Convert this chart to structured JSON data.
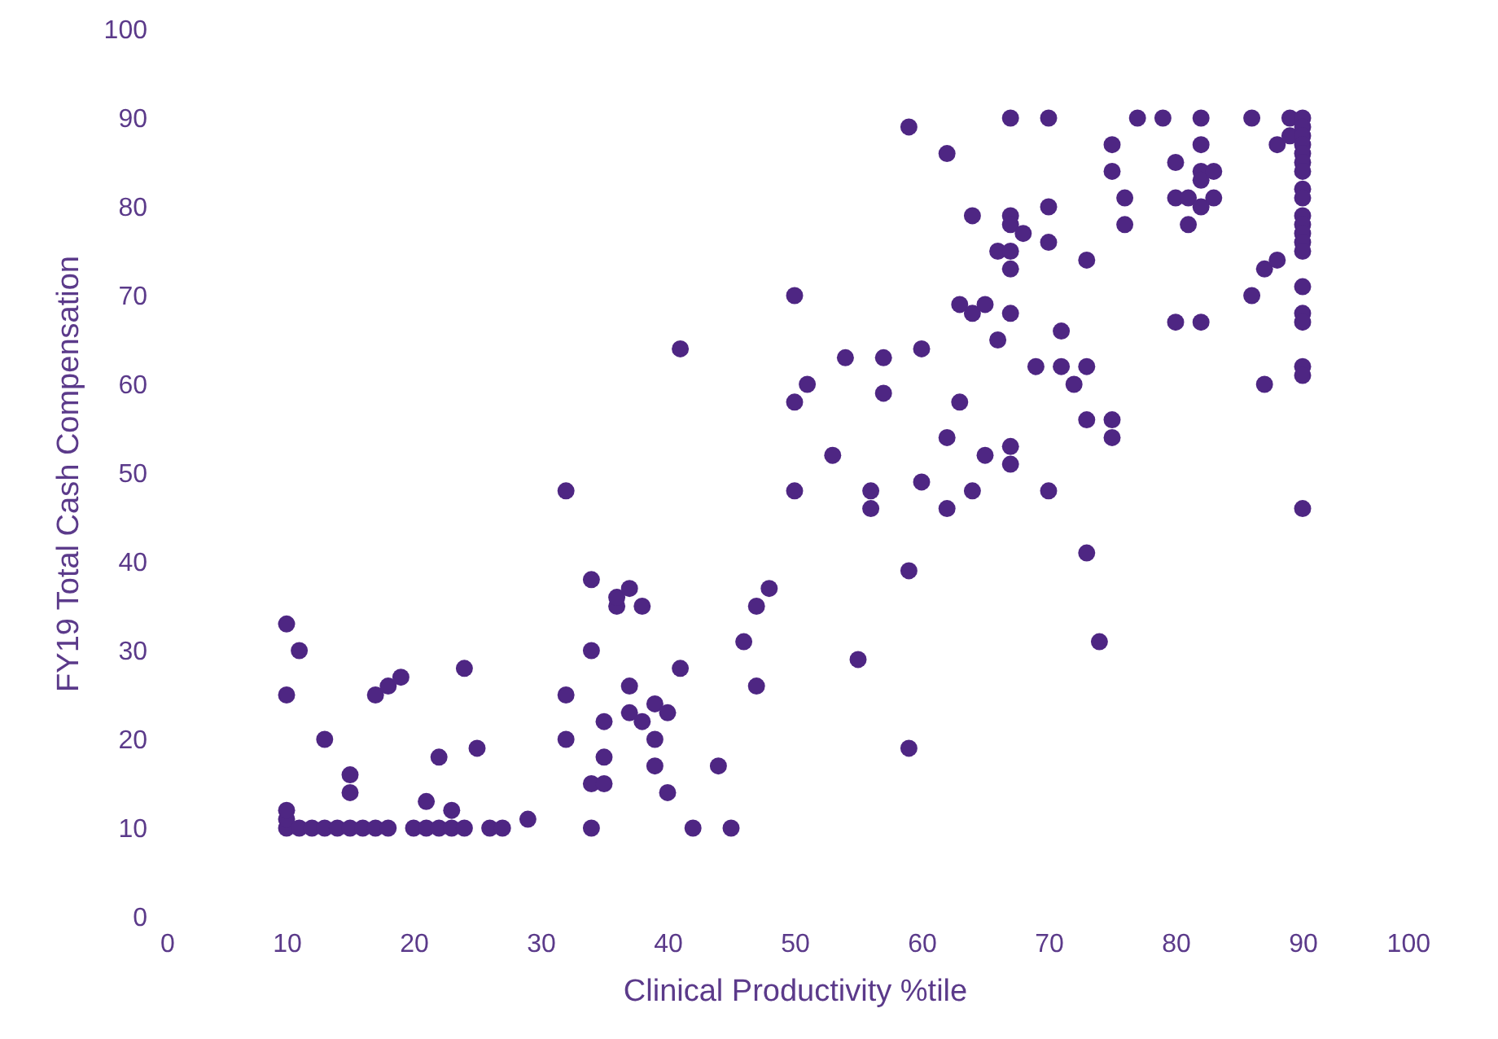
{
  "chart_data": {
    "type": "scatter",
    "xlabel": "Clinical Productivity %tile",
    "ylabel": "FY19 Total Cash Compensation",
    "xlim": [
      0,
      100
    ],
    "ylim": [
      0,
      100
    ],
    "xticks": [
      0,
      10,
      20,
      30,
      40,
      50,
      60,
      70,
      80,
      90,
      100
    ],
    "yticks": [
      0,
      10,
      20,
      30,
      40,
      50,
      60,
      70,
      80,
      90,
      100
    ],
    "grid": false,
    "marker": "circle",
    "series": [
      {
        "color": "#4e2683",
        "x": [
          10,
          10,
          10,
          11,
          12,
          13,
          14,
          15,
          16,
          17,
          18,
          20,
          21,
          22,
          23,
          24,
          26,
          27,
          29,
          42,
          45,
          34,
          10,
          11,
          10,
          13,
          15,
          15,
          17,
          18,
          19,
          21,
          22,
          23,
          24,
          25,
          32,
          32,
          32,
          34,
          34,
          34,
          35,
          35,
          35,
          36,
          36,
          37,
          37,
          37,
          38,
          38,
          39,
          39,
          39,
          40,
          40,
          41,
          41,
          44,
          46,
          47,
          47,
          48,
          50,
          50,
          50,
          51,
          53,
          54,
          55,
          56,
          56,
          57,
          57,
          59,
          59,
          59,
          60,
          60,
          62,
          62,
          62,
          63,
          63,
          64,
          64,
          64,
          65,
          65,
          66,
          66,
          67,
          67,
          67,
          67,
          67,
          67,
          67,
          67,
          68,
          69,
          70,
          70,
          70,
          70,
          71,
          71,
          72,
          73,
          73,
          73,
          73,
          74,
          75,
          75,
          75,
          75,
          76,
          76,
          77,
          79,
          80,
          80,
          80,
          81,
          81,
          82,
          82,
          82,
          82,
          82,
          82,
          83,
          83,
          86,
          86,
          87,
          87,
          88,
          88,
          89,
          89,
          90,
          90,
          90,
          90,
          90,
          90,
          90,
          90,
          90,
          90,
          90,
          90,
          90,
          90,
          90,
          90,
          90,
          90,
          90,
          90
        ],
        "values": [
          10,
          11,
          12,
          10,
          10,
          10,
          10,
          10,
          10,
          10,
          10,
          10,
          10,
          10,
          10,
          10,
          10,
          10,
          11,
          10,
          10,
          10,
          33,
          30,
          25,
          20,
          16,
          14,
          25,
          26,
          27,
          13,
          18,
          12,
          28,
          19,
          48,
          25,
          20,
          38,
          30,
          15,
          22,
          18,
          15,
          35,
          36,
          37,
          26,
          23,
          35,
          22,
          24,
          20,
          17,
          23,
          14,
          64,
          28,
          17,
          31,
          35,
          26,
          37,
          70,
          58,
          48,
          60,
          52,
          63,
          29,
          48,
          46,
          63,
          59,
          89,
          39,
          19,
          64,
          49,
          86,
          54,
          46,
          69,
          58,
          79,
          68,
          48,
          69,
          52,
          75,
          65,
          90,
          79,
          78,
          75,
          73,
          68,
          53,
          51,
          77,
          62,
          90,
          80,
          76,
          48,
          66,
          62,
          60,
          74,
          62,
          56,
          41,
          31,
          87,
          84,
          56,
          54,
          81,
          78,
          90,
          90,
          85,
          81,
          67,
          81,
          78,
          90,
          87,
          84,
          83,
          80,
          67,
          84,
          81,
          90,
          70,
          73,
          60,
          87,
          74,
          90,
          88,
          90,
          89,
          88,
          87,
          86,
          85,
          84,
          82,
          81,
          79,
          78,
          77,
          76,
          75,
          71,
          68,
          67,
          62,
          61,
          46
        ]
      }
    ]
  }
}
